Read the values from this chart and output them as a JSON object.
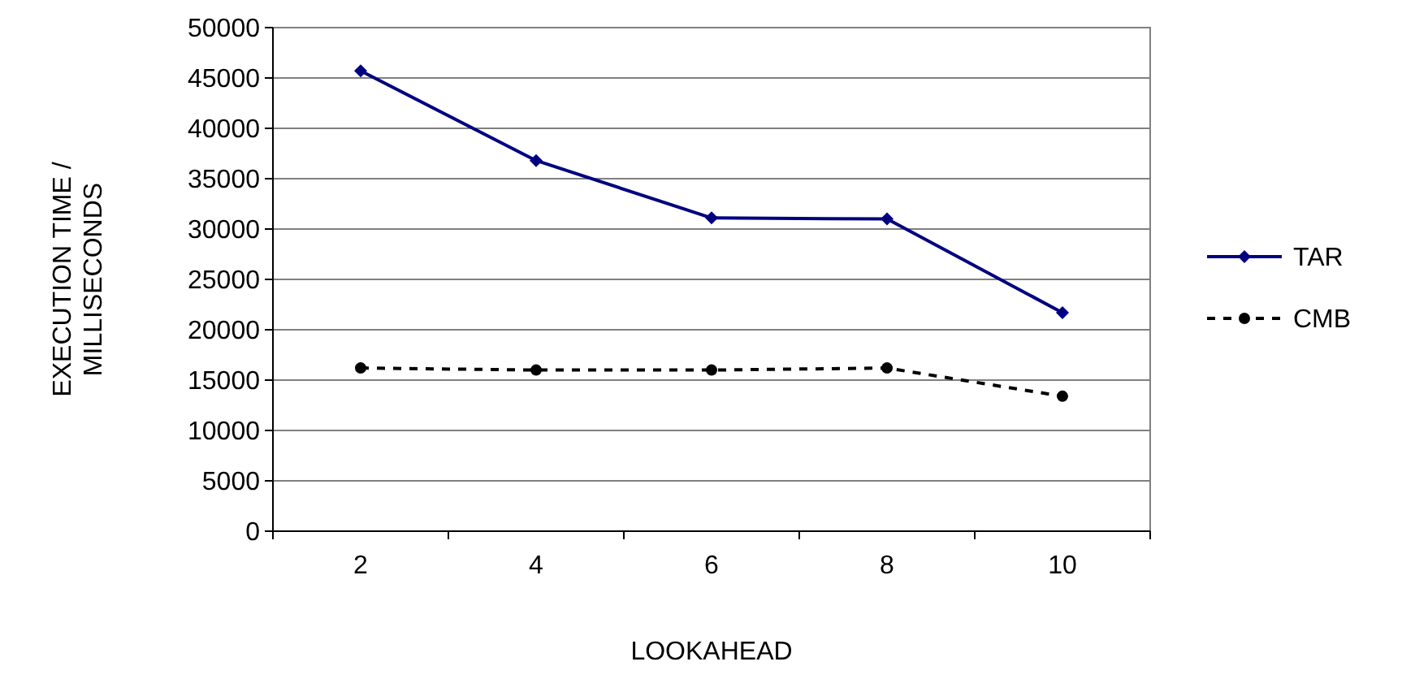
{
  "chart_data": {
    "type": "line",
    "xlabel": "LOOKAHEAD",
    "ylabel": "EXECUTION TIME / MILLISECONDS",
    "categories": [
      "2",
      "4",
      "6",
      "8",
      "10"
    ],
    "ylim": [
      0,
      50000
    ],
    "yticks": [
      0,
      5000,
      10000,
      15000,
      20000,
      25000,
      30000,
      35000,
      40000,
      45000,
      50000
    ],
    "grid": "y",
    "legend": "right",
    "series": [
      {
        "name": "TAR",
        "color": "#000080",
        "values": [
          45700,
          36800,
          31100,
          31000,
          21700
        ],
        "marker": "diamond",
        "line_style": "solid"
      },
      {
        "name": "CMB",
        "color": "#000000",
        "values": [
          16200,
          16000,
          16000,
          16200,
          13400
        ],
        "marker": "circle",
        "line_style": "dashed"
      }
    ]
  }
}
